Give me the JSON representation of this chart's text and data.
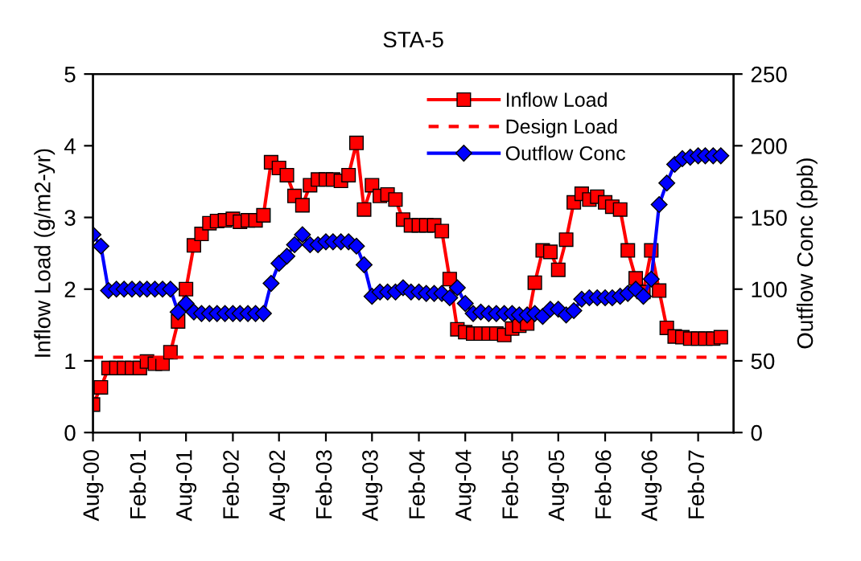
{
  "chart_data": {
    "type": "line",
    "title": "STA-5",
    "ylabel": "Inflow Load (g/m2-yr)",
    "y2label": "Outflow Conc (ppb)",
    "x": [
      "2000-08",
      "2000-09",
      "2000-10",
      "2000-11",
      "2000-12",
      "2001-01",
      "2001-02",
      "2001-03",
      "2001-04",
      "2001-05",
      "2001-06",
      "2001-07",
      "2001-08",
      "2001-09",
      "2001-10",
      "2001-11",
      "2001-12",
      "2002-01",
      "2002-02",
      "2002-03",
      "2002-04",
      "2002-05",
      "2002-06",
      "2002-07",
      "2002-08",
      "2002-09",
      "2002-10",
      "2002-11",
      "2002-12",
      "2003-01",
      "2003-02",
      "2003-03",
      "2003-04",
      "2003-05",
      "2003-06",
      "2003-07",
      "2003-08",
      "2003-09",
      "2003-10",
      "2003-11",
      "2003-12",
      "2004-01",
      "2004-02",
      "2004-03",
      "2004-04",
      "2004-05",
      "2004-06",
      "2004-07",
      "2004-08",
      "2004-09",
      "2004-10",
      "2004-11",
      "2004-12",
      "2005-01",
      "2005-02",
      "2005-03",
      "2005-04",
      "2005-05",
      "2005-06",
      "2005-07",
      "2005-08",
      "2005-09",
      "2005-10",
      "2005-11",
      "2005-12",
      "2006-01",
      "2006-02",
      "2006-03",
      "2006-04",
      "2006-05",
      "2006-06",
      "2006-07",
      "2006-08",
      "2006-09",
      "2006-10",
      "2006-11",
      "2006-12",
      "2007-01",
      "2007-02",
      "2007-03",
      "2007-04",
      "2007-05"
    ],
    "series": [
      {
        "name": "Inflow Load",
        "color": "#ff0000",
        "marker": "square",
        "values": [
          0.39,
          0.63,
          0.9,
          0.9,
          0.9,
          0.9,
          0.9,
          0.99,
          0.96,
          0.96,
          1.12,
          1.55,
          2.0,
          2.61,
          2.77,
          2.92,
          2.95,
          2.96,
          2.98,
          2.94,
          2.96,
          2.96,
          3.03,
          3.77,
          3.69,
          3.59,
          3.3,
          3.17,
          3.45,
          3.53,
          3.53,
          3.53,
          3.51,
          3.59,
          4.04,
          3.11,
          3.45,
          3.3,
          3.32,
          3.25,
          2.97,
          2.89,
          2.89,
          2.89,
          2.89,
          2.81,
          2.14,
          1.44,
          1.4,
          1.38,
          1.38,
          1.38,
          1.38,
          1.36,
          1.45,
          1.49,
          1.52,
          2.09,
          2.54,
          2.52,
          2.27,
          2.69,
          3.21,
          3.33,
          3.25,
          3.29,
          3.21,
          3.15,
          3.11,
          2.54,
          2.15,
          1.96,
          2.54,
          1.98,
          1.46,
          1.34,
          1.33,
          1.31,
          1.31,
          1.31,
          1.31,
          1.33
        ]
      },
      {
        "name": "Outflow Conc",
        "color": "#0000ff",
        "marker": "diamond",
        "axis": "y2",
        "values": [
          138,
          130,
          99,
          100,
          100,
          100,
          100,
          100,
          100,
          100,
          100,
          84,
          90,
          84,
          83,
          83,
          83,
          83,
          83,
          83,
          83,
          83,
          83,
          104,
          118,
          123,
          131,
          138,
          131,
          131,
          133,
          133,
          133,
          133,
          130,
          117,
          95,
          98,
          98,
          98,
          101,
          98,
          98,
          97,
          97,
          97,
          94,
          101,
          90,
          83,
          84,
          83,
          83,
          83,
          83,
          82,
          82,
          83,
          81,
          86,
          86,
          82,
          85,
          93,
          94,
          94,
          94,
          94,
          95,
          97,
          100,
          95,
          107,
          159,
          174,
          187,
          191,
          192,
          193,
          193,
          193,
          193
        ]
      }
    ],
    "ref_lines": [
      {
        "axis": "y",
        "value": 1.05,
        "label": "Design Load",
        "color": "#ff0000",
        "line_style": "dashed"
      }
    ],
    "xlim": [
      "2000-08-01",
      "2007-06-20"
    ],
    "xticks": [
      {
        "value": "2000-08-01",
        "label": "Aug-00"
      },
      {
        "value": "2001-02-01",
        "label": "Feb-01"
      },
      {
        "value": "2001-08-01",
        "label": "Aug-01"
      },
      {
        "value": "2002-02-01",
        "label": "Feb-02"
      },
      {
        "value": "2002-08-01",
        "label": "Aug-02"
      },
      {
        "value": "2003-02-01",
        "label": "Feb-03"
      },
      {
        "value": "2003-08-01",
        "label": "Aug-03"
      },
      {
        "value": "2004-02-01",
        "label": "Feb-04"
      },
      {
        "value": "2004-08-01",
        "label": "Aug-04"
      },
      {
        "value": "2005-02-01",
        "label": "Feb-05"
      },
      {
        "value": "2005-08-01",
        "label": "Aug-05"
      },
      {
        "value": "2006-02-01",
        "label": "Feb-06"
      },
      {
        "value": "2006-08-01",
        "label": "Aug-06"
      },
      {
        "value": "2007-02-01",
        "label": "Feb-07"
      }
    ],
    "ylim": [
      0,
      5
    ],
    "yticks": [
      0,
      1,
      2,
      3,
      4,
      5
    ],
    "y2lim": [
      0,
      250
    ],
    "y2ticks": [
      0,
      50,
      100,
      150,
      200,
      250
    ],
    "grid": false,
    "legend": "top right",
    "line_style": "solid"
  }
}
